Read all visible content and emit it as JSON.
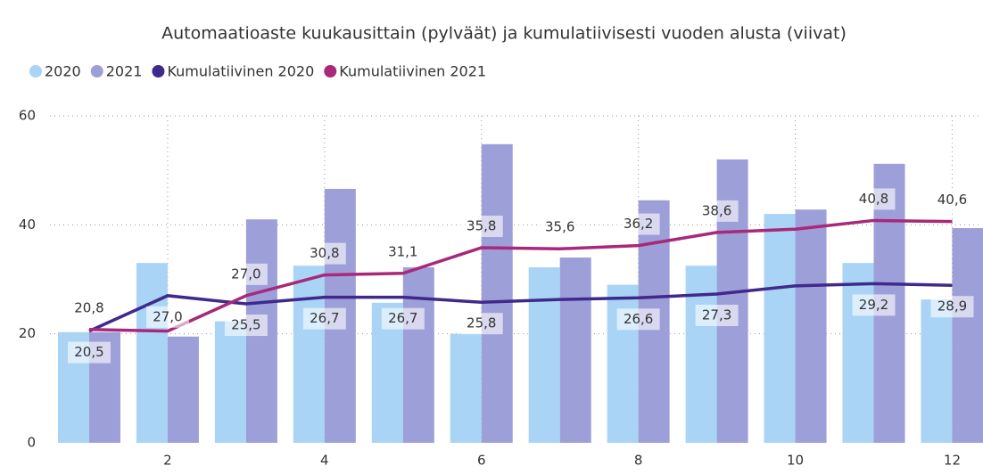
{
  "chart_data": {
    "type": "bar_line",
    "title": "Automaatioaste kuukausittain (pylväät) ja kumulatiivisesti vuoden alusta (viivat)",
    "x": [
      1,
      2,
      3,
      4,
      5,
      6,
      7,
      8,
      9,
      10,
      11,
      12
    ],
    "xlim": [
      0.5,
      12.37
    ],
    "xticks": [
      2,
      4,
      6,
      8,
      10,
      12
    ],
    "ylim": [
      0,
      60
    ],
    "yticks": [
      0,
      20,
      40,
      60
    ],
    "grid": true,
    "series": [
      {
        "name": "2020",
        "type": "bar",
        "color": "#a9d4f5",
        "values": [
          20.3,
          33.0,
          22.3,
          32.5,
          25.7,
          20.0,
          32.2,
          29.0,
          32.5,
          42.0,
          33.0,
          26.3
        ]
      },
      {
        "name": "2021",
        "type": "bar",
        "color": "#9d9fd8",
        "values": [
          20.3,
          19.5,
          41.0,
          46.6,
          32.2,
          54.8,
          34.0,
          44.5,
          52.0,
          42.8,
          51.2,
          39.4
        ]
      },
      {
        "name": "Kumulatiivinen 2020",
        "type": "line",
        "color": "#3f2a8c",
        "values": [
          20.5,
          27.0,
          25.5,
          26.7,
          26.7,
          25.8,
          26.3,
          26.6,
          27.3,
          28.8,
          29.2,
          28.9
        ],
        "value_labels": [
          "20,5",
          "27,0",
          "25,5",
          "26,7",
          "26,7",
          "25,8",
          null,
          "26,6",
          "27,3",
          null,
          "29,2",
          "28,9"
        ]
      },
      {
        "name": "Kumulatiivinen 2021",
        "type": "line",
        "color": "#a8287a",
        "values": [
          20.8,
          20.5,
          27.0,
          30.8,
          31.1,
          35.8,
          35.6,
          36.2,
          38.6,
          39.2,
          40.8,
          40.6
        ],
        "value_labels": [
          "20,8",
          null,
          "27,0",
          "30,8",
          "31,1",
          "35,8",
          "35,6",
          "36,2",
          "38,6",
          null,
          "40,8",
          "40,6"
        ]
      }
    ]
  }
}
